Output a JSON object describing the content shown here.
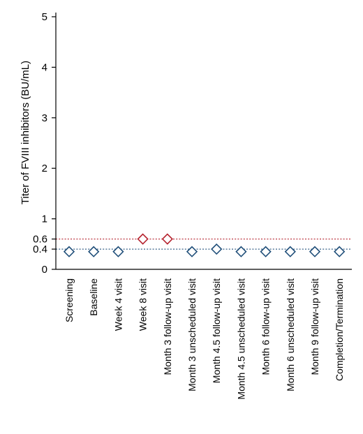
{
  "chart_data": {
    "type": "scatter",
    "ylabel": "Titer of FVIII inhibitors (BU/mL)",
    "xlabel": "",
    "ylim": [
      0,
      5
    ],
    "y_ticks": [
      0,
      0.4,
      0.6,
      1,
      2,
      3,
      4,
      5
    ],
    "y_tick_labels": [
      "0",
      "0.4",
      "0.6",
      "1",
      "2",
      "3",
      "4",
      "5"
    ],
    "grid": false,
    "categories": [
      "Screening",
      "Baseline",
      "Week 4 visit",
      "Week 8 visit",
      "Month 3 follow-up visit",
      "Month 3 unscheduled visit",
      "Month 4.5 follow-up visit",
      "Month 4.5 unscheduled visit",
      "Month 6 follow-up visit",
      "Month 6 unscheduled visit",
      "Month 9 follow-up visit",
      "Completion/Termination"
    ],
    "values": [
      0.35,
      0.35,
      0.35,
      0.6,
      0.6,
      0.35,
      0.4,
      0.35,
      0.35,
      0.35,
      0.35,
      0.35
    ],
    "point_colors": [
      "#1f4e79",
      "#1f4e79",
      "#1f4e79",
      "#b5222e",
      "#b5222e",
      "#1f4e79",
      "#1f4e79",
      "#1f4e79",
      "#1f4e79",
      "#1f4e79",
      "#1f4e79",
      "#1f4e79"
    ],
    "marker": "diamond-open",
    "thresholds": [
      {
        "value": 0.6,
        "color": "#b5222e",
        "style": "dotted"
      },
      {
        "value": 0.4,
        "color": "#1f4e79",
        "style": "dotted"
      }
    ]
  }
}
